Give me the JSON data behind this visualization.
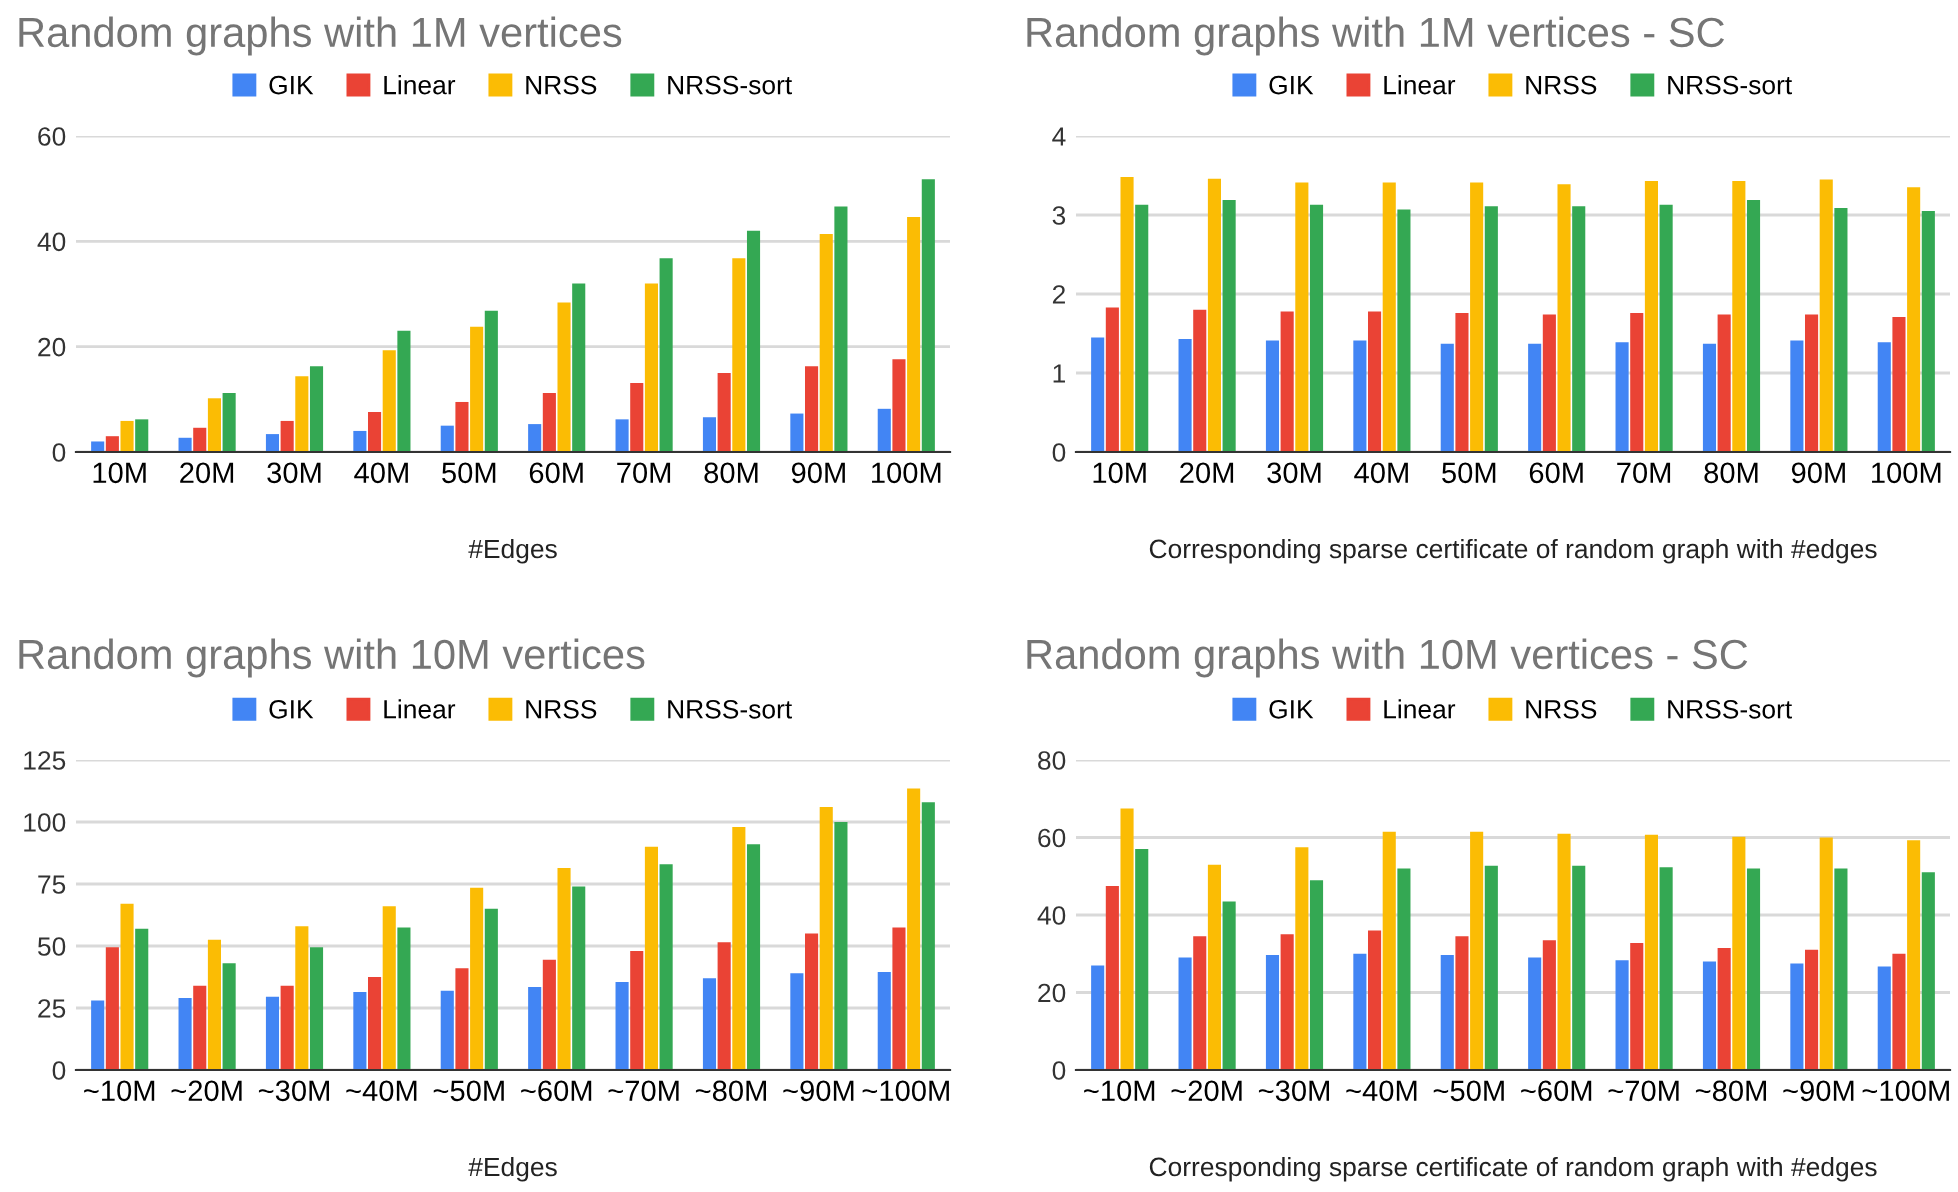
{
  "chart_data": [
    {
      "type": "bar",
      "title": "Random graphs with 1M vertices",
      "xlabel": "#Edges",
      "categories": [
        "10M",
        "20M",
        "30M",
        "40M",
        "50M",
        "60M",
        "70M",
        "80M",
        "90M",
        "100M"
      ],
      "series": [
        {
          "name": "GIK",
          "color": "#4285f4",
          "values": [
            2,
            2.7,
            3.4,
            4,
            5,
            5.3,
            6.2,
            6.6,
            7.3,
            8.2
          ]
        },
        {
          "name": "Linear",
          "color": "#ea4335",
          "values": [
            3,
            4.6,
            5.9,
            7.6,
            9.5,
            11.2,
            13.1,
            15,
            16.3,
            17.6
          ]
        },
        {
          "name": "NRSS",
          "color": "#fbbc04",
          "values": [
            5.9,
            10.2,
            14.4,
            19.3,
            23.8,
            28.4,
            32,
            36.8,
            41.4,
            44.6
          ]
        },
        {
          "name": "NRSS-sort",
          "color": "#34a853",
          "values": [
            6.2,
            11.2,
            16.3,
            23,
            26.8,
            32,
            36.8,
            42,
            46.6,
            51.8
          ]
        }
      ],
      "ylim": [
        0,
        60
      ],
      "yticks": [
        0,
        20,
        40,
        60
      ],
      "grid": "y",
      "legend": "top"
    },
    {
      "type": "bar",
      "title": "Random graphs with 1M vertices - SC",
      "xlabel": "Corresponding sparse certificate of random graph with #edges",
      "categories": [
        "10M",
        "20M",
        "30M",
        "40M",
        "50M",
        "60M",
        "70M",
        "80M",
        "90M",
        "100M"
      ],
      "series": [
        {
          "name": "GIK",
          "color": "#4285f4",
          "values": [
            1.45,
            1.43,
            1.41,
            1.41,
            1.37,
            1.37,
            1.39,
            1.37,
            1.41,
            1.39
          ]
        },
        {
          "name": "Linear",
          "color": "#ea4335",
          "values": [
            1.83,
            1.8,
            1.78,
            1.78,
            1.76,
            1.74,
            1.76,
            1.74,
            1.74,
            1.71
          ]
        },
        {
          "name": "NRSS",
          "color": "#fbbc04",
          "values": [
            3.48,
            3.46,
            3.41,
            3.41,
            3.41,
            3.39,
            3.43,
            3.43,
            3.45,
            3.35
          ]
        },
        {
          "name": "NRSS-sort",
          "color": "#34a853",
          "values": [
            3.13,
            3.19,
            3.13,
            3.07,
            3.11,
            3.11,
            3.13,
            3.19,
            3.09,
            3.05
          ]
        }
      ],
      "ylim": [
        0,
        4
      ],
      "yticks": [
        0,
        1,
        2,
        3,
        4
      ],
      "grid": "y",
      "legend": "top"
    },
    {
      "type": "bar",
      "title": "Random graphs with 10M vertices",
      "xlabel": "#Edges",
      "categories": [
        "~10M",
        "~20M",
        "~30M",
        "~40M",
        "~50M",
        "~60M",
        "~70M",
        "~80M",
        "~90M",
        "~100M"
      ],
      "series": [
        {
          "name": "GIK",
          "color": "#4285f4",
          "values": [
            28,
            29,
            29.5,
            31.5,
            32,
            33.5,
            35.5,
            37,
            39,
            39.5
          ]
        },
        {
          "name": "Linear",
          "color": "#ea4335",
          "values": [
            49.5,
            34,
            34,
            37.5,
            41,
            44.5,
            48,
            51.5,
            55,
            57.5
          ]
        },
        {
          "name": "NRSS",
          "color": "#fbbc04",
          "values": [
            67,
            52.5,
            58,
            66,
            73.5,
            81.5,
            90,
            98,
            106,
            113.5
          ]
        },
        {
          "name": "NRSS-sort",
          "color": "#34a853",
          "values": [
            57,
            43,
            49.5,
            57.5,
            65,
            74,
            83,
            91,
            100,
            108
          ]
        }
      ],
      "ylim": [
        0,
        125
      ],
      "yticks": [
        0,
        25,
        50,
        75,
        100,
        125
      ],
      "grid": "y",
      "legend": "top"
    },
    {
      "type": "bar",
      "title": "Random graphs with 10M vertices - SC",
      "xlabel": "Corresponding sparse certificate of random graph with #edges",
      "categories": [
        "~10M",
        "~20M",
        "~30M",
        "~40M",
        "~50M",
        "~60M",
        "~70M",
        "~80M",
        "~90M",
        "~100M"
      ],
      "series": [
        {
          "name": "GIK",
          "color": "#4285f4",
          "values": [
            27,
            29,
            29.7,
            30,
            29.7,
            29,
            28.3,
            28,
            27.5,
            26.7
          ]
        },
        {
          "name": "Linear",
          "color": "#ea4335",
          "values": [
            47.5,
            34.5,
            35,
            36,
            34.5,
            33.5,
            32.8,
            31.5,
            31,
            30
          ]
        },
        {
          "name": "NRSS",
          "color": "#fbbc04",
          "values": [
            67.5,
            53,
            57.5,
            61.5,
            61.5,
            61,
            60.7,
            60.2,
            60,
            59.3
          ]
        },
        {
          "name": "NRSS-sort",
          "color": "#34a853",
          "values": [
            57,
            43.5,
            49,
            52,
            52.7,
            52.7,
            52.3,
            52,
            52,
            51
          ]
        }
      ],
      "ylim": [
        0,
        80
      ],
      "yticks": [
        0,
        20,
        40,
        60,
        80
      ],
      "grid": "y",
      "legend": "top"
    }
  ]
}
